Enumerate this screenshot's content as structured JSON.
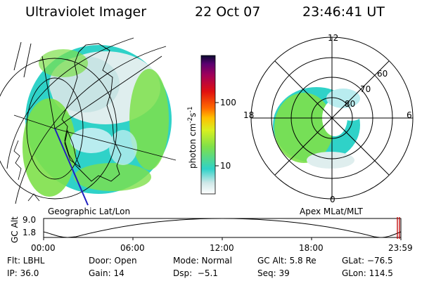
{
  "header": {
    "instrument": "Ultraviolet Imager",
    "date": "22 Oct 07",
    "time": "23:46:41 UT"
  },
  "panels": {
    "geo_label": "Geographic Lat/Lon",
    "apex_label": "Apex MLat/MLT"
  },
  "colorbar": {
    "unit_prefix": "photon cm",
    "unit_exp1": "-2",
    "unit_mid": "s",
    "unit_exp2": "-1",
    "ticks": [
      "100",
      "10"
    ]
  },
  "polar": {
    "mlt_labels": [
      "12",
      "18",
      "6",
      "0"
    ],
    "lat_labels": [
      "60",
      "70",
      "80"
    ]
  },
  "timeline": {
    "ylabel": "GC Alt",
    "yticks": [
      "9.0",
      "1.8"
    ],
    "xticks": [
      "00:00",
      "06:00",
      "12:00",
      "18:00",
      "23:59"
    ]
  },
  "info": {
    "row1": [
      "Flt: LBHL",
      "Door: Open",
      "Mode: Normal",
      "GC Alt: 5.8 Re",
      "GLat: −76.5"
    ],
    "row2": [
      "IP: 36.0",
      "Gain: 14",
      "Dsp:  −5.1",
      "Seq: 39",
      "GLon: 114.5"
    ]
  },
  "colors": {
    "low": "#cfe8e8",
    "mid": "#2fd2c8",
    "green": "#7ee04a",
    "marker": "#c00000"
  }
}
